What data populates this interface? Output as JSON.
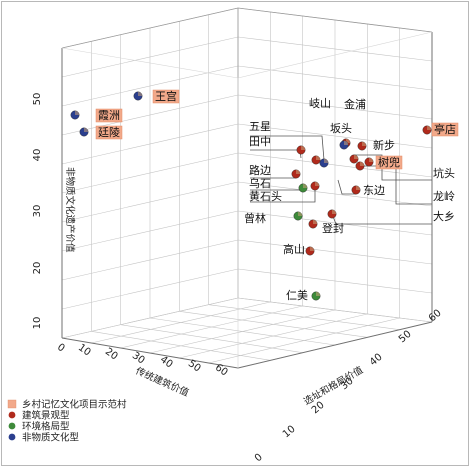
{
  "chart_data": {
    "type": "scatter",
    "title": "",
    "axes": {
      "x": {
        "label": "传统建筑价值",
        "ticks": [
          "0",
          "10",
          "20",
          "30",
          "40",
          "50",
          "60"
        ]
      },
      "y": {
        "label": "选址和格局价值",
        "ticks": [
          "0",
          "10",
          "20",
          "30",
          "40",
          "50",
          "60"
        ]
      },
      "z": {
        "label": "非物质文化遗产价值",
        "ticks": [
          "10",
          "20",
          "30",
          "40",
          "50"
        ]
      }
    },
    "legend": {
      "placement": "bottom-left",
      "items": [
        {
          "name": "乡村记忆文化项目示范村",
          "color": "#f2a98a",
          "shape": "square"
        },
        {
          "name": "建筑景观型",
          "color": "#b02a1c",
          "shape": "circle"
        },
        {
          "name": "环境格局型",
          "color": "#3e8a3a",
          "shape": "circle"
        },
        {
          "name": "非物质文化型",
          "color": "#2b3f8e",
          "shape": "circle"
        }
      ]
    },
    "points": [
      {
        "name": "霞洲",
        "highlight": true,
        "type": "非物质文化型"
      },
      {
        "name": "王宫",
        "highlight": true,
        "type": "非物质文化型"
      },
      {
        "name": "廷陵",
        "highlight": true,
        "type": "非物质文化型"
      },
      {
        "name": "岐山",
        "highlight": false,
        "type": "非物质文化型"
      },
      {
        "name": "金浦",
        "highlight": false,
        "type": "建筑景观型"
      },
      {
        "name": "五星",
        "highlight": false,
        "type": "建筑景观型"
      },
      {
        "name": "坂头",
        "highlight": false,
        "type": "非物质文化型"
      },
      {
        "name": "新步",
        "highlight": false,
        "type": "建筑景观型"
      },
      {
        "name": "亭店",
        "highlight": true,
        "type": "建筑景观型"
      },
      {
        "name": "田中",
        "highlight": false,
        "type": "建筑景观型"
      },
      {
        "name": "树兜",
        "highlight": true,
        "type": "建筑景观型"
      },
      {
        "name": "路边",
        "highlight": false,
        "type": "建筑景观型"
      },
      {
        "name": "乌石",
        "highlight": false,
        "type": "环境格局型"
      },
      {
        "name": "坑头",
        "highlight": false,
        "type": "建筑景观型"
      },
      {
        "name": "黄石头",
        "highlight": false,
        "type": "建筑景观型"
      },
      {
        "name": "东边",
        "highlight": false,
        "type": "建筑景观型"
      },
      {
        "name": "龙岭",
        "highlight": false,
        "type": "建筑景观型"
      },
      {
        "name": "曾林",
        "highlight": false,
        "type": "环境格局型"
      },
      {
        "name": "大乡",
        "highlight": false,
        "type": "建筑景观型"
      },
      {
        "name": "登封",
        "highlight": false,
        "type": "建筑景观型"
      },
      {
        "name": "高山",
        "highlight": false,
        "type": "建筑景观型"
      },
      {
        "name": "仁美",
        "highlight": false,
        "type": "环境格局型"
      }
    ]
  }
}
